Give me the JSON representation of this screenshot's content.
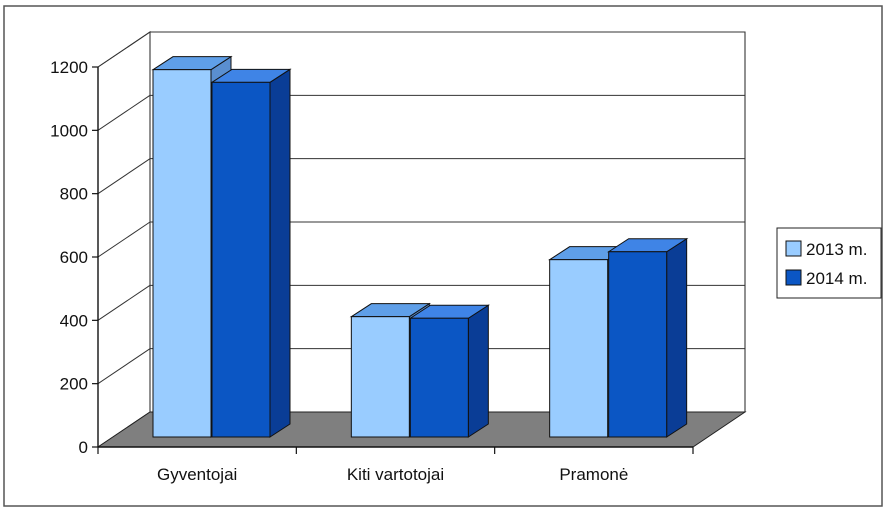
{
  "chart_data": {
    "type": "bar",
    "categories": [
      "Gyventojai",
      "Kiti vartotojai",
      "Pramonė"
    ],
    "series": [
      {
        "name": "2013 m.",
        "values": [
          1160,
          380,
          560
        ],
        "color": "#99ccff"
      },
      {
        "name": "2014 m.",
        "values": [
          1120,
          375,
          585
        ],
        "color": "#0b56c4"
      }
    ],
    "yticks": [
      0,
      200,
      400,
      600,
      800,
      1000,
      1200
    ],
    "ylim": [
      0,
      1200
    ],
    "grid": true,
    "legend": "right",
    "style": "3d-clustered-column",
    "floor_color": "#7f7f7f",
    "side_color": "#0a3d96",
    "top_color": "#3f84e6"
  }
}
